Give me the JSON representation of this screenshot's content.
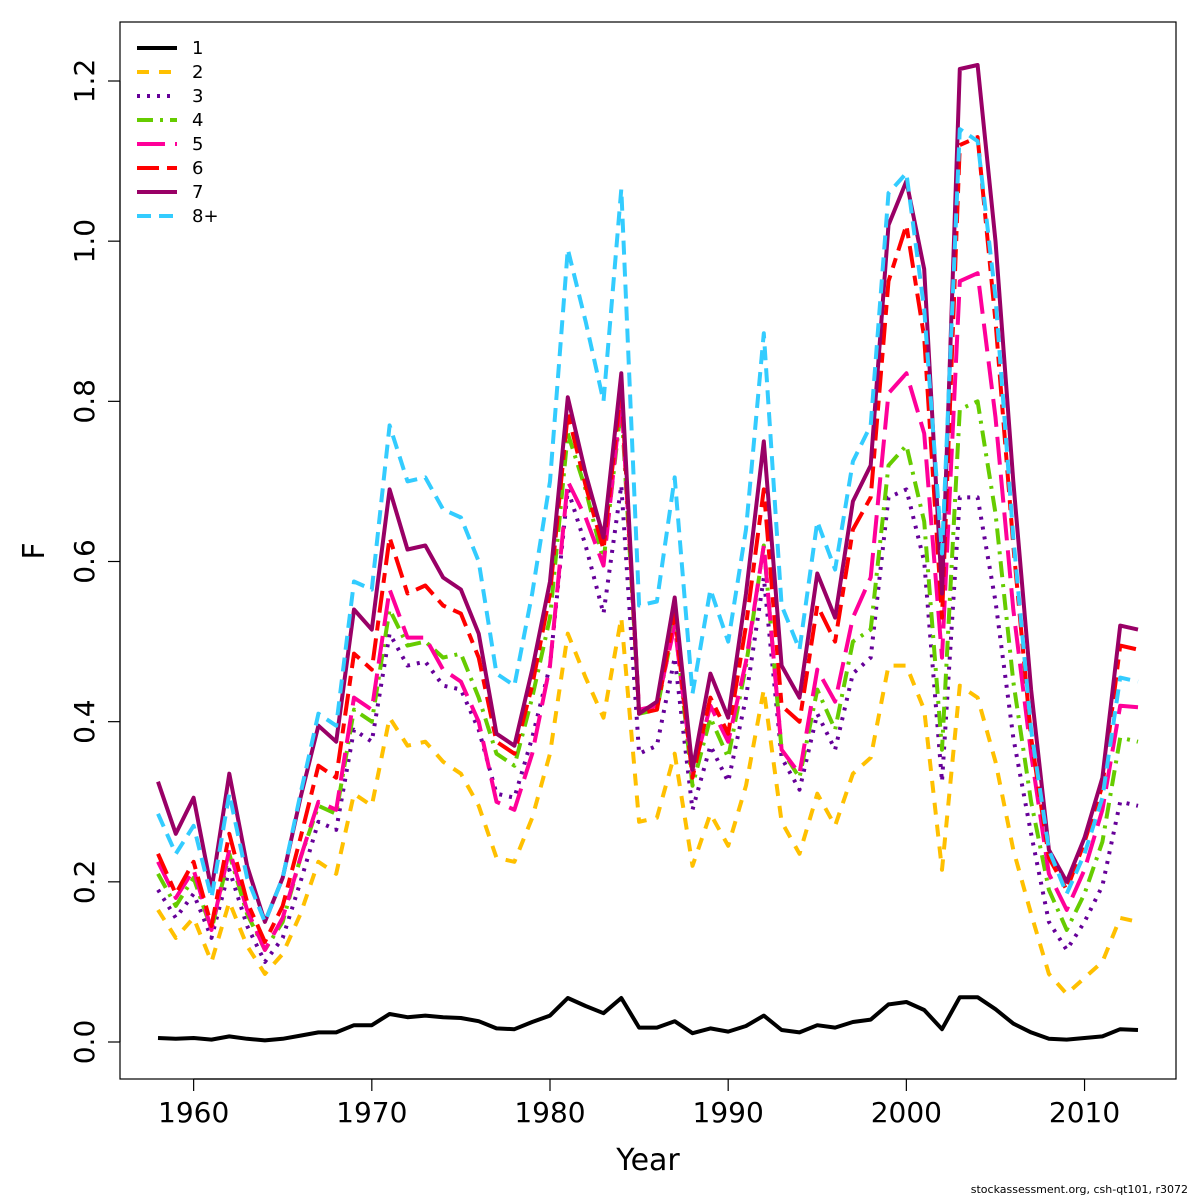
{
  "chart_data": {
    "type": "line",
    "title": "",
    "xlabel": "Year",
    "ylabel": "F",
    "xlim": [
      1958,
      2013
    ],
    "ylim": [
      0,
      1.25
    ],
    "x_ticks": [
      1960,
      1970,
      1980,
      1990,
      2000,
      2010
    ],
    "y_ticks": [
      0.0,
      0.2,
      0.4,
      0.6,
      0.8,
      1.0,
      1.2
    ],
    "y_tick_labels": [
      "0.0",
      "0.2",
      "0.4",
      "0.6",
      "0.8",
      "1.0",
      "1.2"
    ],
    "legend_position": "top-left",
    "grid": false,
    "x": [
      1958,
      1959,
      1960,
      1961,
      1962,
      1963,
      1964,
      1965,
      1966,
      1967,
      1968,
      1969,
      1970,
      1971,
      1972,
      1973,
      1974,
      1975,
      1976,
      1977,
      1978,
      1979,
      1980,
      1981,
      1982,
      1983,
      1984,
      1985,
      1986,
      1987,
      1988,
      1989,
      1990,
      1991,
      1992,
      1993,
      1994,
      1995,
      1996,
      1997,
      1998,
      1999,
      2000,
      2001,
      2002,
      2003,
      2004,
      2005,
      2006,
      2007,
      2008,
      2009,
      2010,
      2011,
      2012,
      2013
    ],
    "series": [
      {
        "name": "1",
        "color": "#000000",
        "dash": "",
        "values": [
          0.005,
          0.004,
          0.005,
          0.003,
          0.007,
          0.004,
          0.002,
          0.004,
          0.008,
          0.012,
          0.012,
          0.021,
          0.021,
          0.035,
          0.031,
          0.033,
          0.031,
          0.03,
          0.026,
          0.017,
          0.016,
          0.025,
          0.033,
          0.055,
          0.045,
          0.036,
          0.055,
          0.018,
          0.018,
          0.026,
          0.011,
          0.017,
          0.013,
          0.02,
          0.033,
          0.015,
          0.012,
          0.021,
          0.018,
          0.025,
          0.028,
          0.047,
          0.05,
          0.04,
          0.016,
          0.056,
          0.056,
          0.041,
          0.023,
          0.012,
          0.004,
          0.003,
          0.005,
          0.007,
          0.016,
          0.015
        ]
      },
      {
        "name": "2",
        "color": "#FFC000",
        "dash": "12 10",
        "values": [
          0.165,
          0.13,
          0.155,
          0.1,
          0.175,
          0.12,
          0.085,
          0.11,
          0.16,
          0.225,
          0.21,
          0.31,
          0.295,
          0.405,
          0.37,
          0.375,
          0.35,
          0.335,
          0.295,
          0.23,
          0.225,
          0.28,
          0.36,
          0.51,
          0.455,
          0.405,
          0.53,
          0.275,
          0.28,
          0.36,
          0.22,
          0.285,
          0.245,
          0.32,
          0.44,
          0.275,
          0.235,
          0.31,
          0.27,
          0.335,
          0.355,
          0.47,
          0.47,
          0.415,
          0.215,
          0.445,
          0.43,
          0.35,
          0.24,
          0.16,
          0.085,
          0.06,
          0.08,
          0.1,
          0.155,
          0.15
        ]
      },
      {
        "name": "3",
        "color": "#660099",
        "dash": "3 7",
        "values": [
          0.19,
          0.155,
          0.185,
          0.13,
          0.215,
          0.145,
          0.1,
          0.13,
          0.2,
          0.275,
          0.265,
          0.39,
          0.375,
          0.51,
          0.47,
          0.475,
          0.445,
          0.44,
          0.39,
          0.31,
          0.305,
          0.38,
          0.47,
          0.69,
          0.62,
          0.535,
          0.695,
          0.36,
          0.37,
          0.48,
          0.29,
          0.37,
          0.325,
          0.43,
          0.58,
          0.355,
          0.315,
          0.41,
          0.365,
          0.46,
          0.48,
          0.68,
          0.69,
          0.6,
          0.325,
          0.68,
          0.68,
          0.55,
          0.38,
          0.26,
          0.15,
          0.115,
          0.15,
          0.195,
          0.3,
          0.295
        ]
      },
      {
        "name": "4",
        "color": "#66CC00",
        "dash": "16 7 3 7",
        "values": [
          0.21,
          0.17,
          0.205,
          0.14,
          0.235,
          0.16,
          0.115,
          0.15,
          0.23,
          0.295,
          0.285,
          0.415,
          0.4,
          0.54,
          0.495,
          0.5,
          0.48,
          0.485,
          0.43,
          0.36,
          0.345,
          0.43,
          0.53,
          0.76,
          0.69,
          0.6,
          0.795,
          0.41,
          0.415,
          0.525,
          0.32,
          0.405,
          0.355,
          0.47,
          0.62,
          0.365,
          0.33,
          0.44,
          0.39,
          0.5,
          0.515,
          0.72,
          0.745,
          0.65,
          0.365,
          0.79,
          0.8,
          0.66,
          0.45,
          0.3,
          0.19,
          0.14,
          0.185,
          0.25,
          0.38,
          0.375
        ]
      },
      {
        "name": "5",
        "color": "#FF0099",
        "dash": "28 10",
        "values": [
          0.225,
          0.18,
          0.215,
          0.14,
          0.24,
          0.165,
          0.115,
          0.155,
          0.23,
          0.3,
          0.29,
          0.43,
          0.415,
          0.565,
          0.505,
          0.505,
          0.465,
          0.45,
          0.4,
          0.3,
          0.29,
          0.36,
          0.47,
          0.7,
          0.655,
          0.595,
          0.805,
          0.415,
          0.42,
          0.52,
          0.335,
          0.42,
          0.375,
          0.475,
          0.62,
          0.365,
          0.335,
          0.465,
          0.425,
          0.53,
          0.58,
          0.81,
          0.835,
          0.76,
          0.48,
          0.95,
          0.96,
          0.78,
          0.54,
          0.36,
          0.21,
          0.165,
          0.215,
          0.29,
          0.42,
          0.418
        ]
      },
      {
        "name": "6",
        "color": "#FF0000",
        "dash": "22 8 10 8",
        "values": [
          0.235,
          0.185,
          0.225,
          0.145,
          0.26,
          0.175,
          0.125,
          0.17,
          0.255,
          0.345,
          0.33,
          0.485,
          0.465,
          0.63,
          0.56,
          0.57,
          0.545,
          0.535,
          0.48,
          0.375,
          0.36,
          0.445,
          0.56,
          0.785,
          0.695,
          0.615,
          0.82,
          0.41,
          0.415,
          0.535,
          0.33,
          0.43,
          0.385,
          0.52,
          0.69,
          0.42,
          0.4,
          0.545,
          0.5,
          0.64,
          0.68,
          0.95,
          1.02,
          0.88,
          0.53,
          1.12,
          1.13,
          0.9,
          0.62,
          0.38,
          0.23,
          0.19,
          0.25,
          0.32,
          0.495,
          0.49
        ]
      },
      {
        "name": "7",
        "color": "#990066",
        "dash": "",
        "values": [
          0.325,
          0.26,
          0.305,
          0.19,
          0.335,
          0.22,
          0.15,
          0.205,
          0.305,
          0.395,
          0.375,
          0.54,
          0.515,
          0.69,
          0.615,
          0.62,
          0.58,
          0.565,
          0.51,
          0.385,
          0.37,
          0.465,
          0.575,
          0.805,
          0.71,
          0.63,
          0.835,
          0.41,
          0.425,
          0.555,
          0.34,
          0.46,
          0.405,
          0.56,
          0.75,
          0.47,
          0.43,
          0.585,
          0.53,
          0.675,
          0.72,
          1.02,
          1.075,
          0.965,
          0.56,
          1.215,
          1.22,
          1.0,
          0.7,
          0.44,
          0.24,
          0.2,
          0.255,
          0.33,
          0.52,
          0.515
        ]
      },
      {
        "name": "8+",
        "color": "#33CCFF",
        "dash": "14 8",
        "values": [
          0.285,
          0.235,
          0.27,
          0.18,
          0.31,
          0.205,
          0.15,
          0.205,
          0.31,
          0.41,
          0.395,
          0.575,
          0.565,
          0.77,
          0.7,
          0.705,
          0.665,
          0.655,
          0.6,
          0.46,
          0.445,
          0.56,
          0.7,
          0.99,
          0.9,
          0.8,
          1.065,
          0.545,
          0.55,
          0.705,
          0.435,
          0.565,
          0.5,
          0.64,
          0.885,
          0.545,
          0.49,
          0.65,
          0.59,
          0.725,
          0.77,
          1.06,
          1.085,
          0.915,
          0.61,
          1.14,
          1.125,
          0.93,
          0.63,
          0.39,
          0.24,
          0.185,
          0.235,
          0.305,
          0.455,
          0.45
        ]
      }
    ]
  },
  "footer": {
    "credit": "stockassessment.org, csh-qt101, r3072"
  }
}
